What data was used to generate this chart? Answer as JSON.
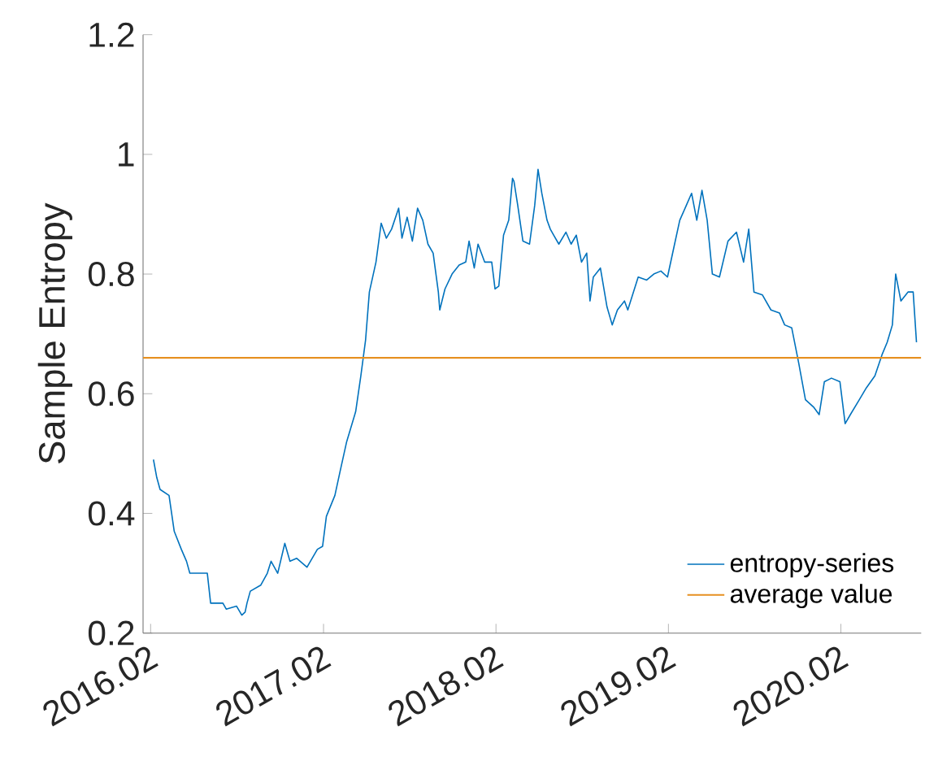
{
  "chart_data": {
    "type": "line",
    "ylabel": "Sample Entropy",
    "x": [
      "2016-02-07",
      "2016-02-14",
      "2016-02-21",
      "2016-03-11",
      "2016-03-22",
      "2016-04-06",
      "2016-04-17",
      "2016-04-24",
      "2016-05-31",
      "2016-06-07",
      "2016-07-03",
      "2016-07-10",
      "2016-08-01",
      "2016-08-12",
      "2016-08-19",
      "2016-08-23",
      "2016-08-30",
      "2016-09-21",
      "2016-10-05",
      "2016-10-13",
      "2016-10-27",
      "2016-11-11",
      "2016-11-22",
      "2016-12-06",
      "2016-12-28",
      "2017-01-19",
      "2017-01-30",
      "2017-02-07",
      "2017-02-25",
      "2017-03-08",
      "2017-03-22",
      "2017-04-10",
      "2017-04-21",
      "2017-05-01",
      "2017-05-09",
      "2017-05-23",
      "2017-06-03",
      "2017-06-14",
      "2017-06-25",
      "2017-07-10",
      "2017-07-17",
      "2017-07-28",
      "2017-08-08",
      "2017-08-19",
      "2017-08-30",
      "2017-09-10",
      "2017-09-21",
      "2017-10-02",
      "2017-10-05",
      "2017-10-16",
      "2017-10-31",
      "2017-11-15",
      "2017-11-29",
      "2017-12-06",
      "2017-12-17",
      "2017-12-25",
      "2018-01-08",
      "2018-01-23",
      "2018-01-30",
      "2018-02-07",
      "2018-02-17",
      "2018-02-28",
      "2018-03-08",
      "2018-03-11",
      "2018-03-19",
      "2018-03-30",
      "2018-04-13",
      "2018-04-24",
      "2018-05-01",
      "2018-05-09",
      "2018-05-20",
      "2018-05-27",
      "2018-06-03",
      "2018-06-14",
      "2018-06-29",
      "2018-07-10",
      "2018-07-21",
      "2018-08-01",
      "2018-08-12",
      "2018-08-19",
      "2018-08-26",
      "2018-09-10",
      "2018-09-24",
      "2018-10-05",
      "2018-10-16",
      "2018-10-31",
      "2018-11-07",
      "2018-11-29",
      "2018-12-17",
      "2019-01-01",
      "2019-01-16",
      "2019-01-30",
      "2019-02-14",
      "2019-02-25",
      "2019-03-11",
      "2019-03-22",
      "2019-04-02",
      "2019-04-13",
      "2019-04-24",
      "2019-05-05",
      "2019-05-20",
      "2019-06-07",
      "2019-06-25",
      "2019-07-10",
      "2019-07-21",
      "2019-08-01",
      "2019-08-19",
      "2019-09-06",
      "2019-09-24",
      "2019-10-05",
      "2019-10-20",
      "2019-11-04",
      "2019-11-18",
      "2019-12-06",
      "2019-12-17",
      "2019-12-28",
      "2020-01-12",
      "2020-01-30",
      "2020-02-10",
      "2020-02-21",
      "2020-03-11",
      "2020-03-26",
      "2020-04-13",
      "2020-04-28",
      "2020-05-09",
      "2020-05-20",
      "2020-05-27",
      "2020-06-07",
      "2020-06-22",
      "2020-07-03",
      "2020-07-10"
    ],
    "series": [
      {
        "name": "entropy-series",
        "color": "#0072bd",
        "values": [
          0.49,
          0.46,
          0.44,
          0.43,
          0.37,
          0.34,
          0.32,
          0.3,
          0.3,
          0.25,
          0.25,
          0.24,
          0.245,
          0.23,
          0.235,
          0.25,
          0.27,
          0.28,
          0.3,
          0.32,
          0.3,
          0.35,
          0.32,
          0.325,
          0.31,
          0.34,
          0.345,
          0.395,
          0.43,
          0.47,
          0.52,
          0.57,
          0.63,
          0.69,
          0.77,
          0.82,
          0.885,
          0.86,
          0.875,
          0.91,
          0.86,
          0.895,
          0.855,
          0.91,
          0.89,
          0.85,
          0.835,
          0.77,
          0.74,
          0.775,
          0.8,
          0.815,
          0.82,
          0.855,
          0.81,
          0.85,
          0.82,
          0.82,
          0.775,
          0.78,
          0.865,
          0.89,
          0.96,
          0.955,
          0.915,
          0.855,
          0.85,
          0.915,
          0.975,
          0.935,
          0.89,
          0.875,
          0.865,
          0.85,
          0.87,
          0.85,
          0.865,
          0.82,
          0.835,
          0.755,
          0.795,
          0.81,
          0.745,
          0.715,
          0.74,
          0.755,
          0.74,
          0.795,
          0.79,
          0.8,
          0.805,
          0.795,
          0.85,
          0.89,
          0.915,
          0.935,
          0.89,
          0.94,
          0.89,
          0.8,
          0.795,
          0.855,
          0.87,
          0.82,
          0.875,
          0.77,
          0.765,
          0.74,
          0.735,
          0.715,
          0.71,
          0.65,
          0.59,
          0.577,
          0.565,
          0.62,
          0.626,
          0.62,
          0.55,
          0.565,
          0.59,
          0.61,
          0.63,
          0.665,
          0.686,
          0.715,
          0.8,
          0.755,
          0.77,
          0.77,
          0.686
        ]
      }
    ],
    "ref_lines": [
      {
        "axis": "y",
        "value": 0.66,
        "label": "average value",
        "color": "#e69020"
      }
    ],
    "xlim": [
      "2016-01-16",
      "2020-07-20"
    ],
    "ylim": [
      0.2,
      1.2
    ],
    "xticks": [
      {
        "value": "2016-02",
        "label": "2016.02"
      },
      {
        "value": "2017-02",
        "label": "2017.02"
      },
      {
        "value": "2018-02",
        "label": "2018.02"
      },
      {
        "value": "2019-02",
        "label": "2019.02"
      },
      {
        "value": "2020-02",
        "label": "2020.02"
      }
    ],
    "yticks": [
      0.2,
      0.4,
      0.6,
      0.8,
      1,
      1.2
    ],
    "legend": "bottom right",
    "grid": false,
    "marker": "none",
    "line_style": "solid"
  }
}
